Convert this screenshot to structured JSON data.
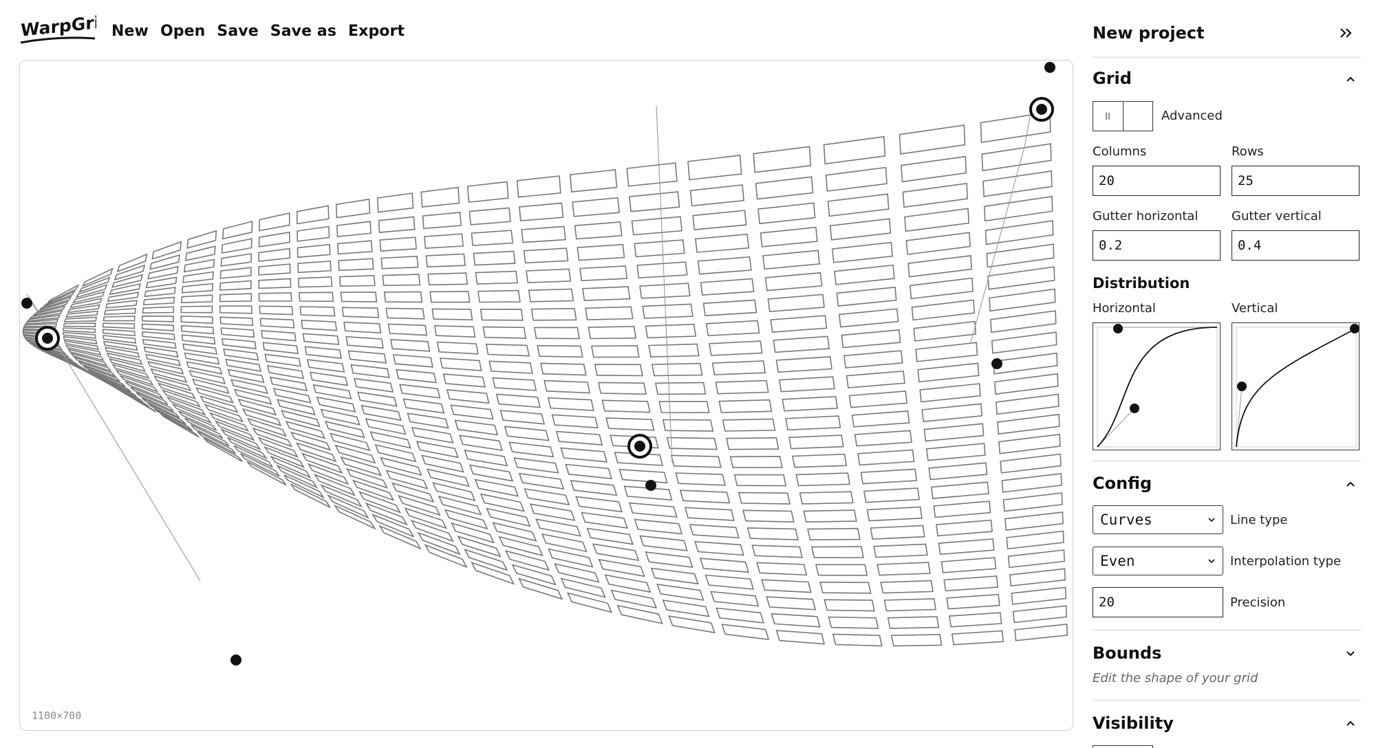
{
  "app": {
    "logo_text": "WarpGrid"
  },
  "menu": {
    "new": "New",
    "open": "Open",
    "save": "Save",
    "save_as": "Save as",
    "export": "Export"
  },
  "canvas": {
    "size_label": "1100×700"
  },
  "sidebar": {
    "project_title": "New project",
    "grid": {
      "title": "Grid",
      "advanced_label": "Advanced",
      "columns_label": "Columns",
      "columns_value": "20",
      "rows_label": "Rows",
      "rows_value": "25",
      "gutter_h_label": "Gutter horizontal",
      "gutter_h_value": "0.2",
      "gutter_v_label": "Gutter vertical",
      "gutter_v_value": "0.4",
      "distribution_title": "Distribution",
      "horizontal_label": "Horizontal",
      "vertical_label": "Vertical"
    },
    "config": {
      "title": "Config",
      "line_type_value": "Curves",
      "line_type_label": "Line type",
      "interpolation_value": "Even",
      "interpolation_label": "Interpolation type",
      "precision_value": "20",
      "precision_label": "Precision"
    },
    "bounds": {
      "title": "Bounds",
      "hint": "Edit the shape of your grid"
    },
    "visibility": {
      "title": "Visibility"
    }
  }
}
